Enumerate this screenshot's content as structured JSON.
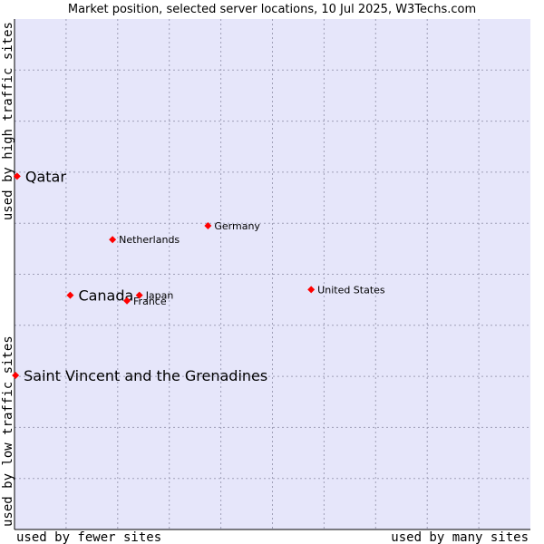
{
  "chart_data": {
    "type": "scatter",
    "title": "Market position, selected server locations, 10 Jul 2025, W3Techs.com",
    "xlabel_left": "used by fewer sites",
    "xlabel_right": "used by many sites",
    "ylabel_bottom": "used by low traffic sites",
    "ylabel_top": "used by high traffic sites",
    "xlim": [
      0,
      100
    ],
    "ylim": [
      0,
      100
    ],
    "grid": true,
    "colors": {
      "background": "#e6e6fa",
      "point": "#ff0000",
      "grid": "#a0a0b8"
    },
    "points": [
      {
        "name": "Qatar",
        "x": 0.5,
        "y": 69.2,
        "highlight": true
      },
      {
        "name": "Germany",
        "x": 37.5,
        "y": 59.5,
        "highlight": false
      },
      {
        "name": "Netherlands",
        "x": 19.0,
        "y": 56.8,
        "highlight": false
      },
      {
        "name": "United States",
        "x": 57.5,
        "y": 47.0,
        "highlight": false
      },
      {
        "name": "Canada",
        "x": 10.8,
        "y": 45.9,
        "highlight": true
      },
      {
        "name": "Japan",
        "x": 24.2,
        "y": 45.9,
        "highlight": false
      },
      {
        "name": "France",
        "x": 21.8,
        "y": 44.8,
        "highlight": false
      },
      {
        "name": "Saint Vincent and the Grenadines",
        "x": 0.2,
        "y": 30.2,
        "highlight": true
      }
    ]
  }
}
